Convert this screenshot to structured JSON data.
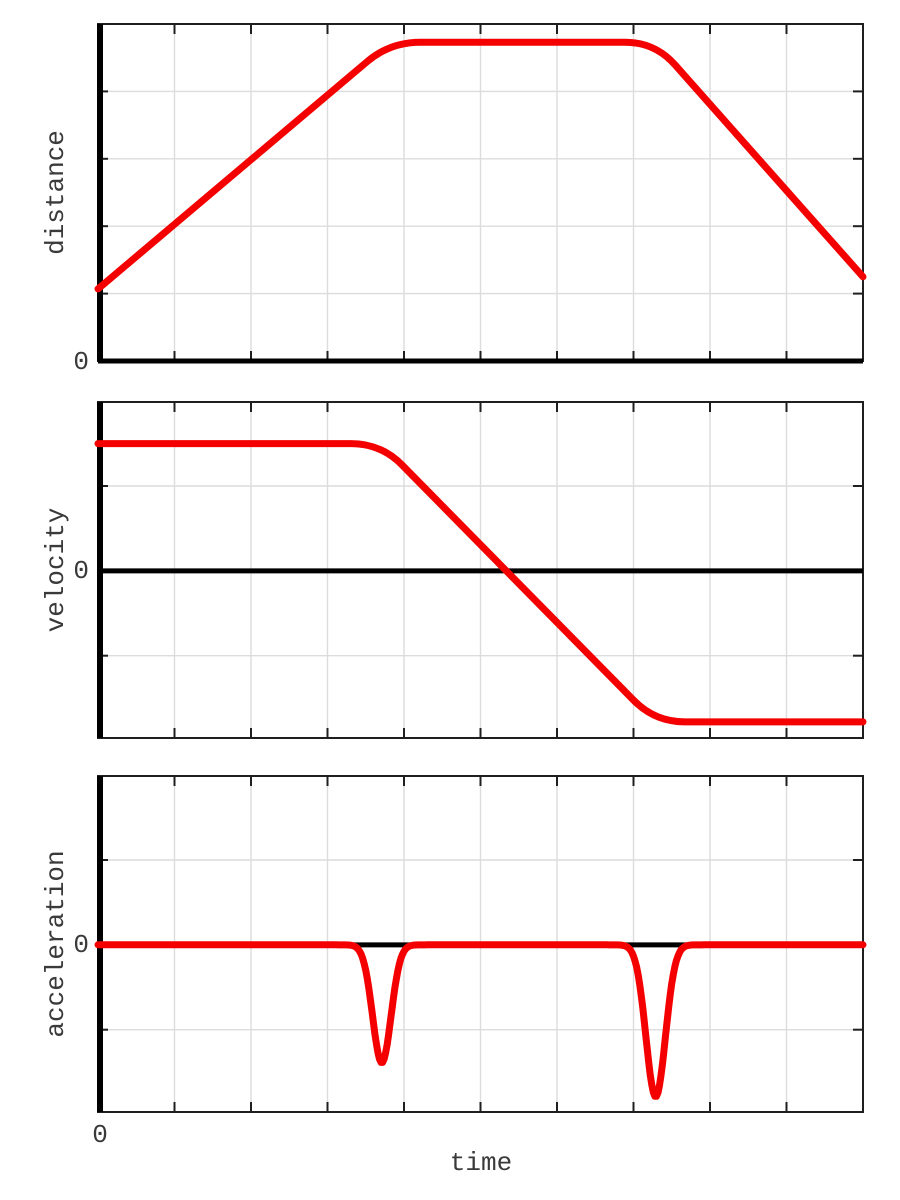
{
  "figure": {
    "xlabel": "time",
    "x_zero_label": "0",
    "background": "#ffffff",
    "grid": "on",
    "legend": "none",
    "colors": {
      "curve": "#f40000",
      "zero_axis": "#000000",
      "box": "#1f1f1f",
      "grid": "#dcdcdc",
      "text": "#3a3a3a"
    }
  },
  "chart_data": [
    {
      "type": "line",
      "ylabel": "distance",
      "zero_tick_label": "0",
      "x_range": [
        0,
        10
      ],
      "y_range": [
        0,
        5
      ],
      "x_ticks": [
        1,
        2,
        3,
        4,
        5,
        6,
        7,
        8,
        9
      ],
      "y_ticks": [
        1,
        2,
        3,
        4
      ],
      "zero_line_y": 0,
      "series": [
        {
          "name": "distance",
          "shape": "rounded-polyline",
          "corner_radius_px": 30,
          "vertices": [
            [
              0,
              1.07
            ],
            [
              3.82,
              4.73
            ],
            [
              7.28,
              4.73
            ],
            [
              10,
              1.25
            ]
          ],
          "description": "rises linearly, plateaus near the top, then falls linearly"
        }
      ]
    },
    {
      "type": "line",
      "ylabel": "velocity",
      "zero_tick_label": "0",
      "x_range": [
        0,
        10
      ],
      "y_range": [
        -1.97,
        1.99
      ],
      "x_ticks": [
        1,
        2,
        3,
        4,
        5,
        6,
        7,
        8,
        9
      ],
      "y_ticks": [
        -1,
        0,
        1
      ],
      "zero_line_y": 0,
      "series": [
        {
          "name": "velocity",
          "shape": "rounded-polyline",
          "corner_radius_px": 30,
          "vertices": [
            [
              0,
              1.5
            ],
            [
              3.7,
              1.5
            ],
            [
              7.28,
              -1.78
            ],
            [
              10,
              -1.78
            ]
          ],
          "description": "constant at +1.5, ramps down through zero near x=5.3, constant at -1.78"
        }
      ]
    },
    {
      "type": "line",
      "ylabel": "acceleration",
      "zero_tick_label": "0",
      "x_range": [
        0,
        10
      ],
      "y_range": [
        -1.97,
        1.99
      ],
      "x_ticks": [
        1,
        2,
        3,
        4,
        5,
        6,
        7,
        8,
        9
      ],
      "y_ticks": [
        -1,
        0,
        1
      ],
      "zero_line_y": 0,
      "series": [
        {
          "name": "acceleration",
          "shape": "baseline-gaussian-dips",
          "baseline": 0,
          "dips": [
            {
              "center": 3.71,
              "depth": -1.39,
              "sigma": 0.17
            },
            {
              "center": 7.29,
              "depth": -1.79,
              "sigma": 0.18
            }
          ],
          "description": "zero everywhere except two sharp negative Gaussian pulses"
        }
      ]
    }
  ]
}
